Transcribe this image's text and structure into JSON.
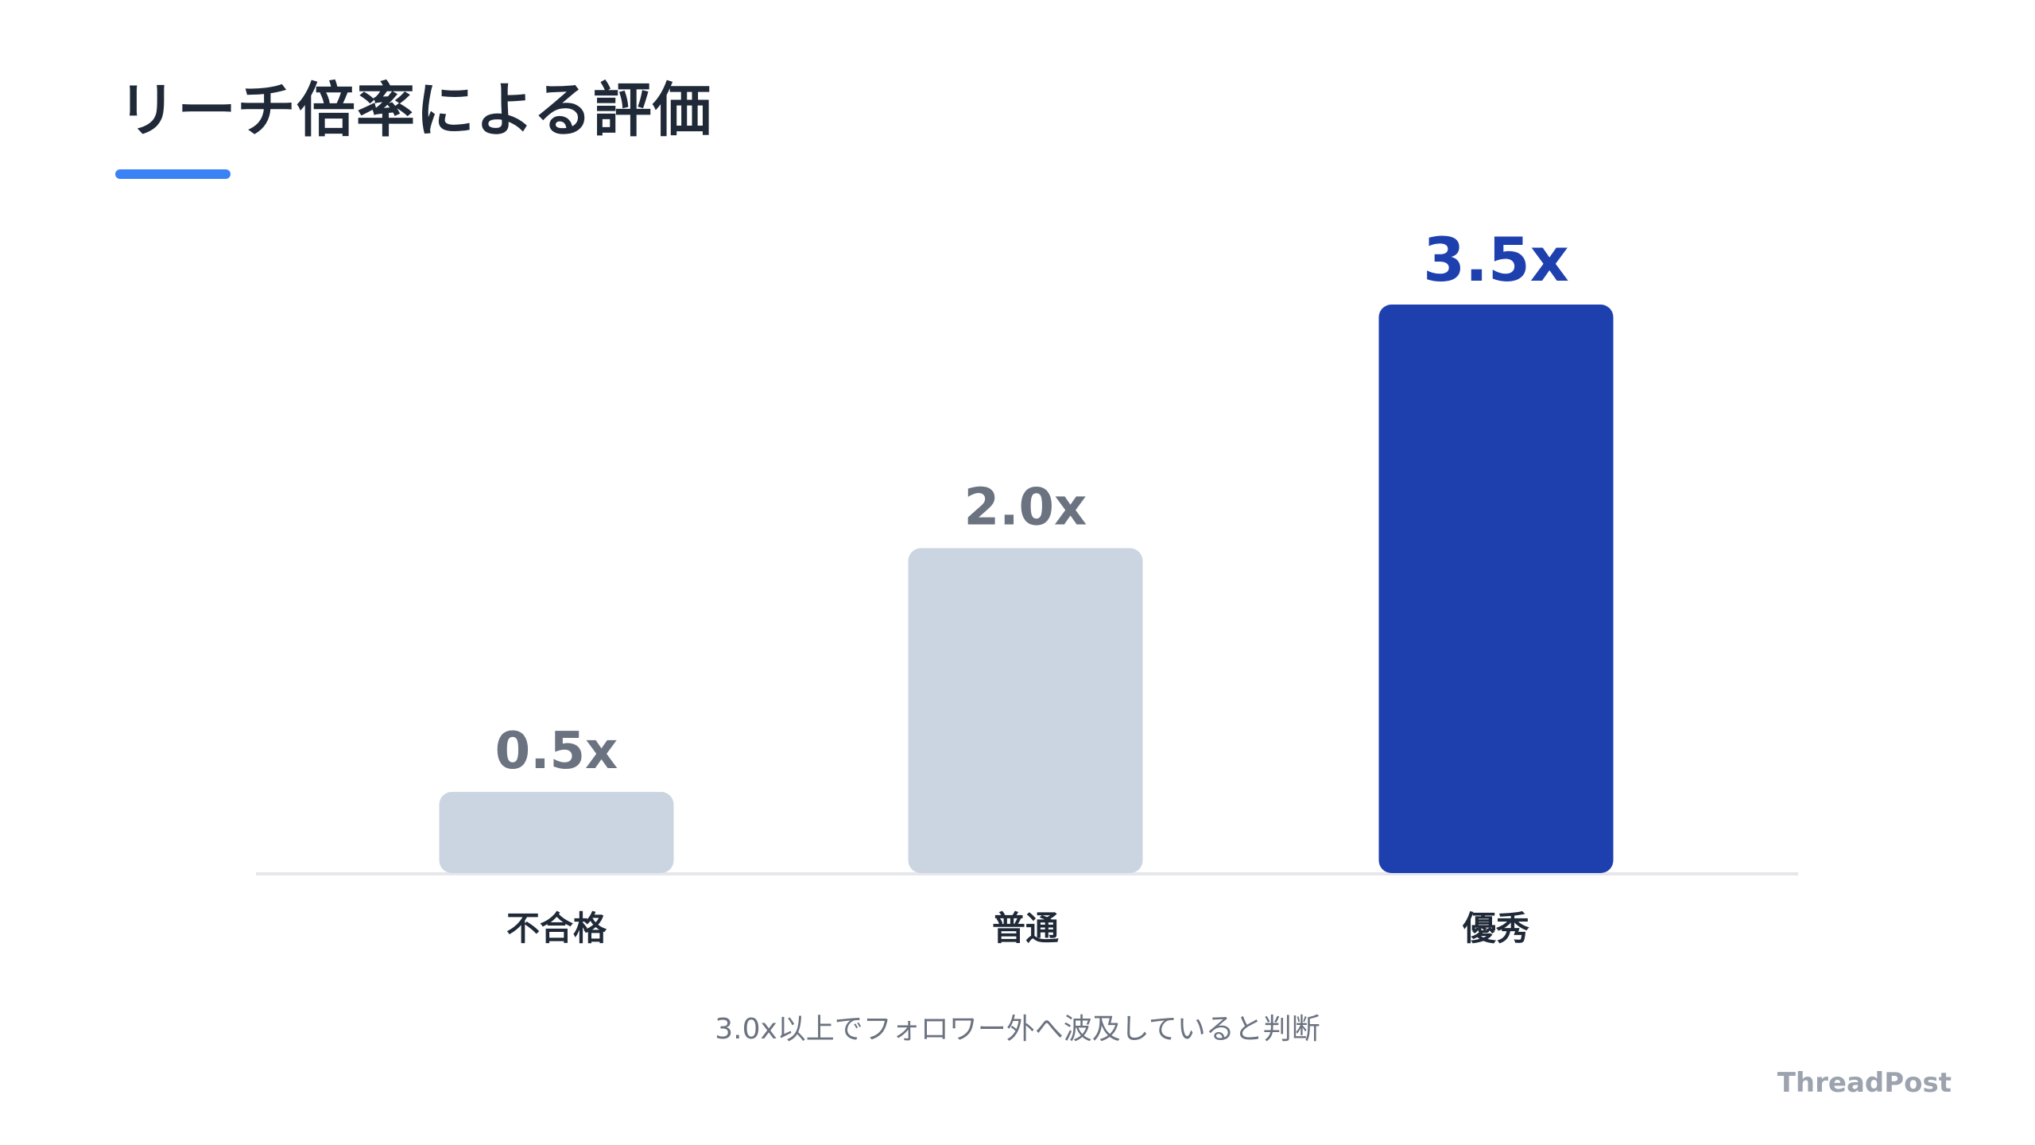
{
  "title": "リーチ倍率による評価",
  "accent_color": "#3b82f6",
  "footnote": "3.0x以上でフォロワー外へ波及していると判断",
  "brand": "ThreadPost",
  "chart_data": {
    "type": "bar",
    "title": "リーチ倍率による評価",
    "categories": [
      "不合格",
      "普通",
      "優秀"
    ],
    "values": [
      0.5,
      2.0,
      3.5
    ],
    "value_labels": [
      "0.5x",
      "2.0x",
      "3.5x"
    ],
    "bar_colors": [
      "#cbd5e1",
      "#cbd5e1",
      "#1e40af"
    ],
    "value_label_colors": [
      "#6b7280",
      "#6b7280",
      "#1e40af"
    ],
    "ylim": [
      0,
      3.5
    ],
    "grid": false,
    "legend": "none"
  }
}
